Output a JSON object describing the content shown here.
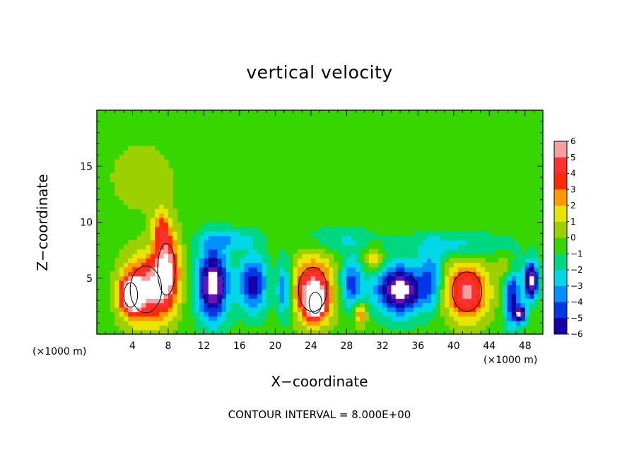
{
  "chart_data": {
    "type": "heatmap",
    "title": "vertical velocity",
    "xlabel": "X−coordinate",
    "ylabel": "Z−coordinate",
    "x_unit": "(×1000 m)",
    "y_unit": "(×1000 m)",
    "xlim": [
      0,
      50
    ],
    "ylim": [
      0,
      20
    ],
    "x_ticks": [
      4,
      8,
      12,
      16,
      20,
      24,
      28,
      32,
      36,
      40,
      44,
      48
    ],
    "x_tick_labels": [
      "4",
      "8",
      "12",
      "16",
      "20",
      "24",
      "28",
      "32",
      "36",
      "40",
      "44",
      "48"
    ],
    "y_ticks": [
      5,
      10,
      15
    ],
    "y_tick_labels": [
      "5",
      "10",
      "15"
    ],
    "colorbar": {
      "levels": [
        6,
        5,
        4,
        3,
        2,
        1,
        0,
        -1,
        -2,
        -3,
        -4,
        -5,
        -6
      ],
      "labels": [
        "6",
        "5",
        "4",
        "3",
        "2",
        "1",
        "0",
        "−1",
        "−2",
        "−3",
        "−4",
        "−5",
        "−6"
      ],
      "colors": [
        "#f4a0a0",
        "#ff3030",
        "#ff2a00",
        "#ff9a00",
        "#e6e600",
        "#9cd000",
        "#38d600",
        "#00d880",
        "#00d8e8",
        "#0090ff",
        "#0038e8",
        "#1800a8",
        "#7010b0"
      ]
    },
    "background_value": 0,
    "cells": [
      {
        "xc": 5.5,
        "zc": 4.0,
        "rx": 3.2,
        "rz": 3.8,
        "w": 6
      },
      {
        "xc": 3.8,
        "zc": 3.5,
        "rx": 1.4,
        "rz": 2.0,
        "w": 7
      },
      {
        "xc": 7.8,
        "zc": 5.8,
        "rx": 1.8,
        "rz": 4.2,
        "w": 6
      },
      {
        "xc": 7.2,
        "zc": 9.5,
        "rx": 1.2,
        "rz": 2.2,
        "w": 3
      },
      {
        "xc": 5.0,
        "zc": 14.0,
        "rx": 4.0,
        "rz": 3.5,
        "w": 1.5
      },
      {
        "xc": 13.0,
        "zc": 4.5,
        "rx": 2.2,
        "rz": 4.2,
        "w": -7
      },
      {
        "xc": 17.5,
        "zc": 4.5,
        "rx": 2.0,
        "rz": 3.2,
        "w": -5
      },
      {
        "xc": 24.2,
        "zc": 4.0,
        "rx": 2.9,
        "rz": 3.6,
        "w": 6
      },
      {
        "xc": 24.5,
        "zc": 2.8,
        "rx": 1.3,
        "rz": 1.7,
        "w": 7
      },
      {
        "xc": 21.0,
        "zc": 4.0,
        "rx": 1.0,
        "rz": 3.2,
        "w": -4
      },
      {
        "xc": 28.5,
        "zc": 4.5,
        "rx": 1.6,
        "rz": 3.0,
        "w": -4
      },
      {
        "xc": 29.5,
        "zc": 1.8,
        "rx": 0.9,
        "rz": 1.2,
        "w": 4
      },
      {
        "xc": 34.0,
        "zc": 4.0,
        "rx": 3.5,
        "rz": 2.8,
        "w": -7
      },
      {
        "xc": 31.0,
        "zc": 6.8,
        "rx": 1.2,
        "rz": 1.2,
        "w": 3
      },
      {
        "xc": 41.5,
        "zc": 3.8,
        "rx": 3.0,
        "rz": 3.2,
        "w": 6
      },
      {
        "xc": 46.0,
        "zc": 6.0,
        "rx": 1.2,
        "rz": 1.8,
        "w": 2
      },
      {
        "xc": 46.5,
        "zc": 3.5,
        "rx": 1.2,
        "rz": 3.5,
        "w": -5
      },
      {
        "xc": 48.7,
        "zc": 4.8,
        "rx": 1.0,
        "rz": 2.2,
        "w": -7
      },
      {
        "xc": 47.5,
        "zc": 1.8,
        "rx": 0.8,
        "rz": 0.9,
        "w": -6
      },
      {
        "xc": 37.5,
        "zc": 5.0,
        "rx": 1.4,
        "rz": 3.2,
        "w": -3
      },
      {
        "xc": 15.0,
        "zc": 8.5,
        "rx": 4.0,
        "rz": 1.2,
        "w": -2
      },
      {
        "xc": 40.0,
        "zc": 8.0,
        "rx": 7.0,
        "rz": 1.4,
        "w": -2
      },
      {
        "xc": 27.0,
        "zc": 8.5,
        "rx": 5.0,
        "rz": 1.5,
        "w": -1.5
      }
    ],
    "contour_interval": 8.0
  },
  "footnote": "CONTOUR INTERVAL = 8.000E+00"
}
